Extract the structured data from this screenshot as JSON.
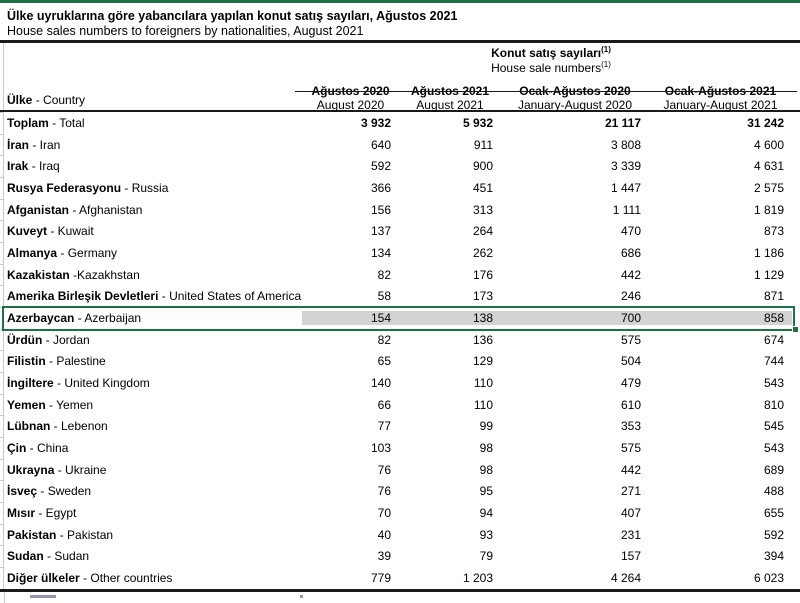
{
  "title": {
    "tr": "Ülke uyruklarına göre yabancılara yapılan konut satış sayıları, Ağustos 2021",
    "en": "House sales numbers to foreigners by nationalities, August 2021"
  },
  "colors": {
    "selection_green": "#1e7145",
    "selection_fill_gray": "#d3d3d3",
    "rule_black": "#1a1a1a",
    "gridline_gray": "#c9c9c9"
  },
  "table": {
    "group_header": {
      "tr": "Konut satış sayıları",
      "en": "House sale numbers",
      "footnote_mark": "(1)"
    },
    "row_header": {
      "tr": "Ülke",
      "rest": " - Country"
    },
    "columns": [
      {
        "tr": "Ağustos 2020",
        "en": "August 2020"
      },
      {
        "tr": "Ağustos 2021",
        "en": "August 2021"
      },
      {
        "tr": "Ocak-Ağustos 2020",
        "en": "January-August 2020"
      },
      {
        "tr": "Ocak-Ağustos 2021",
        "en": "January-August 2021"
      }
    ],
    "rows": [
      {
        "tr": "Toplam",
        "sep": " - ",
        "en": "Total",
        "values": [
          "3 932",
          "5 932",
          "21 117",
          "31 242"
        ],
        "bold_values": true
      },
      {
        "tr": "İran",
        "sep": " - ",
        "en": "Iran",
        "values": [
          "640",
          "911",
          "3 808",
          "4 600"
        ]
      },
      {
        "tr": "Irak",
        "sep": " - ",
        "en": "Iraq",
        "values": [
          "592",
          "900",
          "3 339",
          "4 631"
        ]
      },
      {
        "tr": "Rusya Federasyonu",
        "sep": " - ",
        "en": "Russia",
        "values": [
          "366",
          "451",
          "1 447",
          "2 575"
        ]
      },
      {
        "tr": "Afganistan",
        "sep": " - ",
        "en": "Afghanistan",
        "values": [
          "156",
          "313",
          "1 111",
          "1 819"
        ]
      },
      {
        "tr": "Kuveyt",
        "sep": " - ",
        "en": "Kuwait",
        "values": [
          "137",
          "264",
          "470",
          "873"
        ]
      },
      {
        "tr": "Almanya",
        "sep": " - ",
        "en": "Germany",
        "values": [
          "134",
          "262",
          "686",
          "1 186"
        ]
      },
      {
        "tr": "Kazakistan",
        "sep": " -",
        "en": "Kazakhstan",
        "values": [
          "82",
          "176",
          "442",
          "1 129"
        ]
      },
      {
        "tr": "Amerika Birleşik Devletleri",
        "sep": " - ",
        "en": "United States of America",
        "values": [
          "58",
          "173",
          "246",
          "871"
        ]
      },
      {
        "tr": "Azerbaycan",
        "sep": " - ",
        "en": "Azerbaijan",
        "values": [
          "154",
          "138",
          "700",
          "858"
        ],
        "selected": true
      },
      {
        "tr": "Ürdün",
        "sep": " - ",
        "en": "Jordan",
        "values": [
          "82",
          "136",
          "575",
          "674"
        ]
      },
      {
        "tr": "Filistin",
        "sep": " - ",
        "en": "Palestine",
        "values": [
          "65",
          "129",
          "504",
          "744"
        ]
      },
      {
        "tr": "İngiltere",
        "sep": " - ",
        "en": "United Kingdom",
        "values": [
          "140",
          "110",
          "479",
          "543"
        ]
      },
      {
        "tr": "Yemen",
        "sep": " - ",
        "en": "Yemen",
        "values": [
          "66",
          "110",
          "610",
          "810"
        ]
      },
      {
        "tr": "Lübnan",
        "sep": " - ",
        "en": "Lebenon",
        "values": [
          "77",
          "99",
          "353",
          "545"
        ]
      },
      {
        "tr": "Çin",
        "sep": " - ",
        "en": "China",
        "values": [
          "103",
          "98",
          "575",
          "543"
        ]
      },
      {
        "tr": "Ukrayna",
        "sep": " - ",
        "en": "Ukraine",
        "values": [
          "76",
          "98",
          "442",
          "689"
        ]
      },
      {
        "tr": "İsveç",
        "sep": " - ",
        "en": "Sweden",
        "values": [
          "76",
          "95",
          "271",
          "488"
        ]
      },
      {
        "tr": "Mısır",
        "sep": " - ",
        "en": "Egypt",
        "values": [
          "70",
          "94",
          "407",
          "655"
        ]
      },
      {
        "tr": "Pakistan",
        "sep": " - ",
        "en": "Pakistan",
        "values": [
          "40",
          "93",
          "231",
          "592"
        ]
      },
      {
        "tr": "Sudan",
        "sep": " - ",
        "en": "Sudan",
        "values": [
          "39",
          "79",
          "157",
          "394"
        ]
      },
      {
        "tr": "Diğer ülkeler",
        "sep": " - ",
        "en": "Other countries",
        "values": [
          "779",
          "1 203",
          "4 264",
          "6 023"
        ]
      }
    ]
  }
}
